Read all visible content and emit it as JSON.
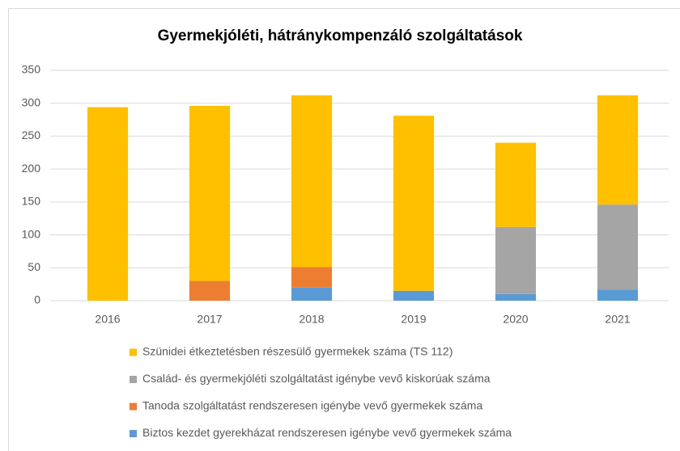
{
  "chart_data": {
    "type": "stacked_bar",
    "title": "Gyermekjóléti, hátránykompenzáló szolgáltatások",
    "categories": [
      "2016",
      "2017",
      "2018",
      "2019",
      "2020",
      "2021"
    ],
    "series": [
      {
        "name": "Biztos kezdet gyerekházat rendszeresen igénybe vevő gyermekek száma",
        "color": "#5b9bd5",
        "values": [
          0,
          0,
          20,
          15,
          10,
          17
        ]
      },
      {
        "name": "Tanoda szolgáltatást rendszeresen igénybe vevő gyermekek száma",
        "color": "#ed7d31",
        "values": [
          0,
          30,
          31,
          0,
          0,
          0
        ]
      },
      {
        "name": "Család- és gyermekjóléti szolgáltatást igénybe vevő kiskorúak száma",
        "color": "#a5a5a5",
        "values": [
          0,
          0,
          0,
          0,
          102,
          129
        ]
      },
      {
        "name": "Szünidei étkeztetésben részesülő gyermekek száma (TS 112)",
        "color": "#ffc000",
        "values": [
          294,
          266,
          261,
          266,
          128,
          166
        ]
      }
    ],
    "ylim": [
      0,
      350
    ],
    "yticks": [
      0,
      50,
      100,
      150,
      200,
      250,
      300,
      350
    ],
    "grid": true
  }
}
